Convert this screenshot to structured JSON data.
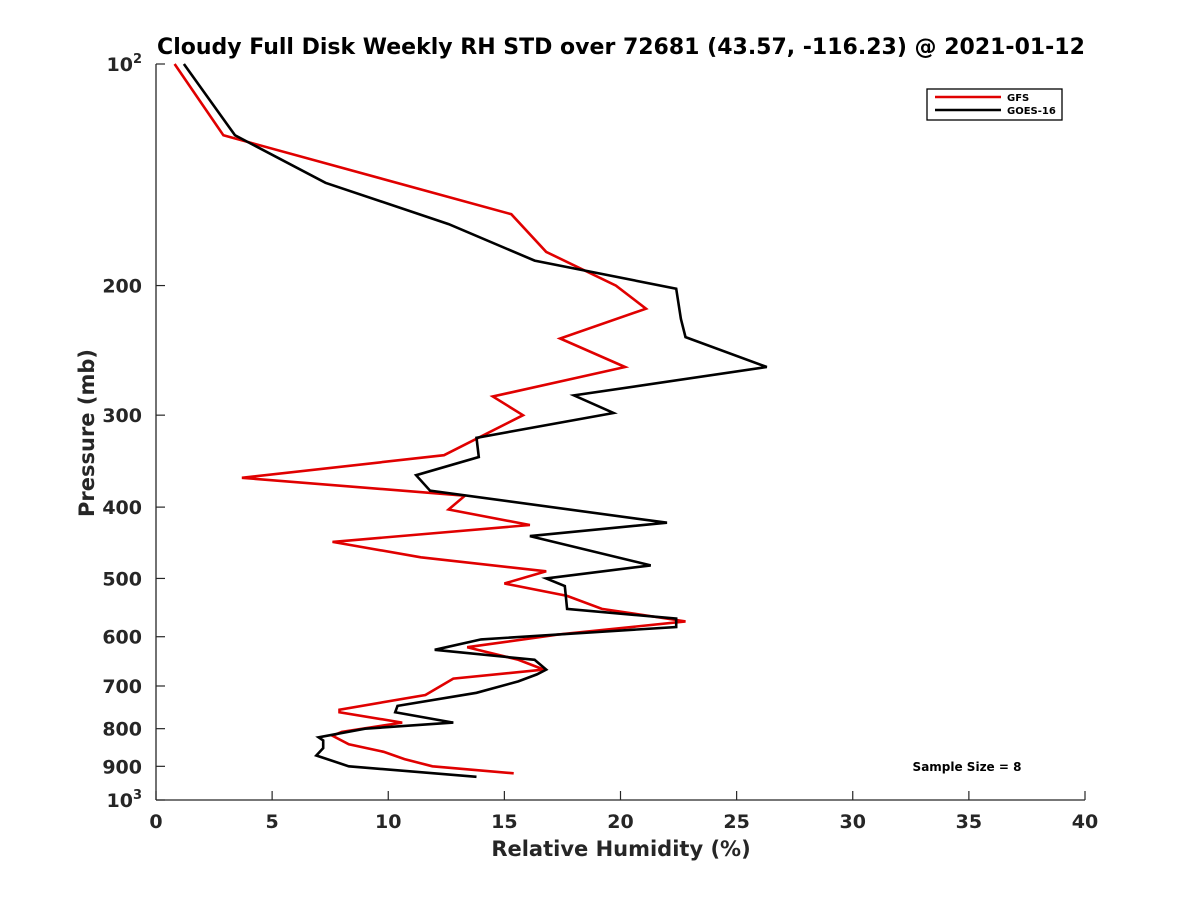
{
  "chart_data": {
    "type": "line",
    "title": "Cloudy Full Disk Weekly RH STD over 72681 (43.57, -116.23) @ 2021-01-12",
    "xlabel": "Relative Humidity (%)",
    "ylabel": "Pressure (mb)",
    "xlim": [
      0,
      40
    ],
    "ylim": [
      100,
      1000
    ],
    "y_scale": "log",
    "y_reversed": true,
    "grid": false,
    "legend_position": "top-right",
    "x_ticks": [
      0,
      5,
      10,
      15,
      20,
      25,
      30,
      35,
      40
    ],
    "y_ticks": [
      {
        "value": 100,
        "base": "10",
        "exp": "2"
      },
      {
        "value": 200,
        "label": "200"
      },
      {
        "value": 300,
        "label": "300"
      },
      {
        "value": 400,
        "label": "400"
      },
      {
        "value": 500,
        "label": "500"
      },
      {
        "value": 600,
        "label": "600"
      },
      {
        "value": 700,
        "label": "700"
      },
      {
        "value": 800,
        "label": "800"
      },
      {
        "value": 900,
        "label": "900"
      },
      {
        "value": 1000,
        "base": "10",
        "exp": "3"
      }
    ],
    "series": [
      {
        "name": "GFS",
        "color": "#e00000",
        "points": [
          [
            0.8,
            100
          ],
          [
            2.9,
            125
          ],
          [
            15.3,
            160
          ],
          [
            16.8,
            180
          ],
          [
            19.8,
            200
          ],
          [
            21.1,
            215
          ],
          [
            17.4,
            236
          ],
          [
            20.2,
            258
          ],
          [
            14.5,
            283
          ],
          [
            15.8,
            300
          ],
          [
            12.4,
            340
          ],
          [
            3.7,
            365
          ],
          [
            13.3,
            386
          ],
          [
            12.6,
            403
          ],
          [
            16.1,
            423
          ],
          [
            7.6,
            446
          ],
          [
            11.4,
            468
          ],
          [
            16.8,
            489
          ],
          [
            15.0,
            508
          ],
          [
            17.7,
            528
          ],
          [
            19.2,
            550
          ],
          [
            22.8,
            572
          ],
          [
            17.3,
            596
          ],
          [
            13.4,
            620
          ],
          [
            15.6,
            645
          ],
          [
            16.7,
            665
          ],
          [
            12.8,
            684
          ],
          [
            11.6,
            720
          ],
          [
            7.9,
            754
          ],
          [
            7.9,
            760
          ],
          [
            10.6,
            785
          ],
          [
            8.0,
            808
          ],
          [
            7.6,
            818
          ],
          [
            8.3,
            840
          ],
          [
            9.8,
            860
          ],
          [
            10.7,
            880
          ],
          [
            11.9,
            900
          ],
          [
            15.4,
            920
          ]
        ]
      },
      {
        "name": "GOES-16",
        "color": "#000000",
        "points": [
          [
            1.2,
            100
          ],
          [
            3.4,
            125
          ],
          [
            7.3,
            145
          ],
          [
            12.6,
            165
          ],
          [
            16.3,
            185
          ],
          [
            22.4,
            202
          ],
          [
            22.6,
            222
          ],
          [
            22.8,
            235
          ],
          [
            26.3,
            258
          ],
          [
            18.0,
            282
          ],
          [
            19.7,
            298
          ],
          [
            13.8,
            322
          ],
          [
            13.9,
            342
          ],
          [
            11.2,
            362
          ],
          [
            11.8,
            380
          ],
          [
            22.0,
            420
          ],
          [
            16.1,
            438
          ],
          [
            21.3,
            480
          ],
          [
            16.8,
            500
          ],
          [
            17.6,
            512
          ],
          [
            17.7,
            550
          ],
          [
            22.4,
            567
          ],
          [
            22.4,
            582
          ],
          [
            14.0,
            605
          ],
          [
            12.0,
            625
          ],
          [
            16.3,
            645
          ],
          [
            16.8,
            665
          ],
          [
            16.4,
            675
          ],
          [
            15.6,
            690
          ],
          [
            13.8,
            715
          ],
          [
            10.4,
            745
          ],
          [
            10.3,
            760
          ],
          [
            12.8,
            785
          ],
          [
            9.0,
            800
          ],
          [
            7.0,
            822
          ],
          [
            7.2,
            830
          ],
          [
            7.2,
            850
          ],
          [
            6.9,
            870
          ],
          [
            8.3,
            900
          ],
          [
            13.8,
            930
          ]
        ]
      }
    ],
    "annotation": "Sample Size = 8"
  }
}
